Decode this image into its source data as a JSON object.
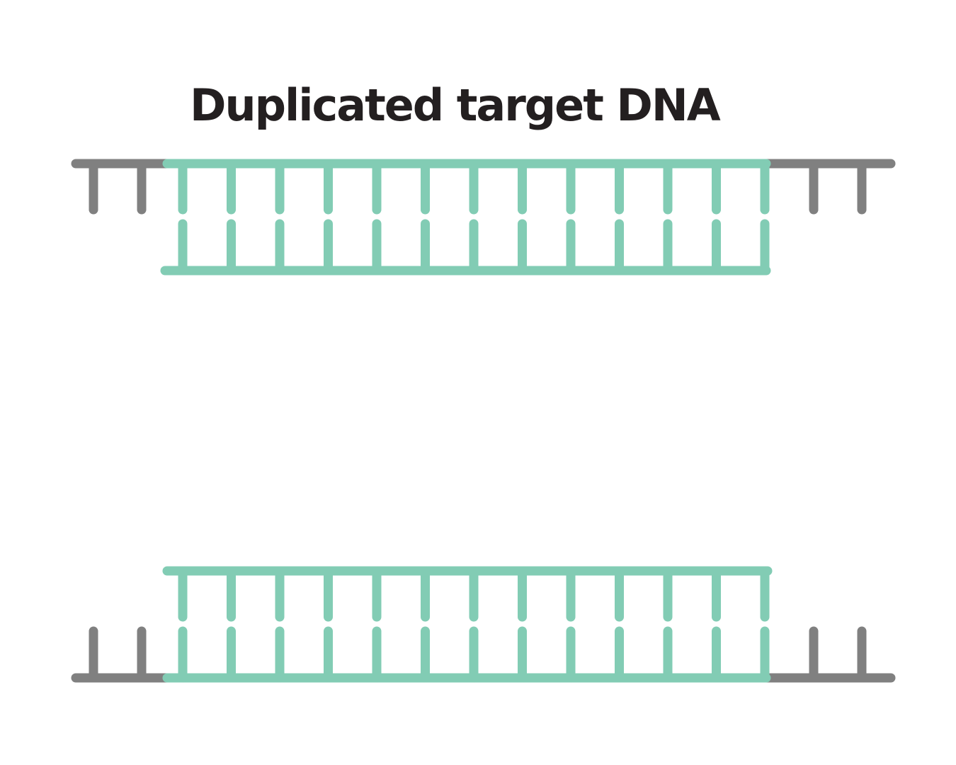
{
  "title": "Duplicated target DNA",
  "colors": {
    "target": "#82ccb4",
    "flank": "#808080",
    "text": "#231f20",
    "background": "#ffffff"
  },
  "molecules": [
    {
      "name": "top",
      "flank_bases_left": 2,
      "flank_bases_right": 2,
      "target_base_pairs": 13,
      "target_ends": "sticky-left"
    },
    {
      "name": "bottom",
      "flank_bases_left": 2,
      "flank_bases_right": 2,
      "target_base_pairs": 13,
      "target_ends": "sticky-left"
    }
  ]
}
